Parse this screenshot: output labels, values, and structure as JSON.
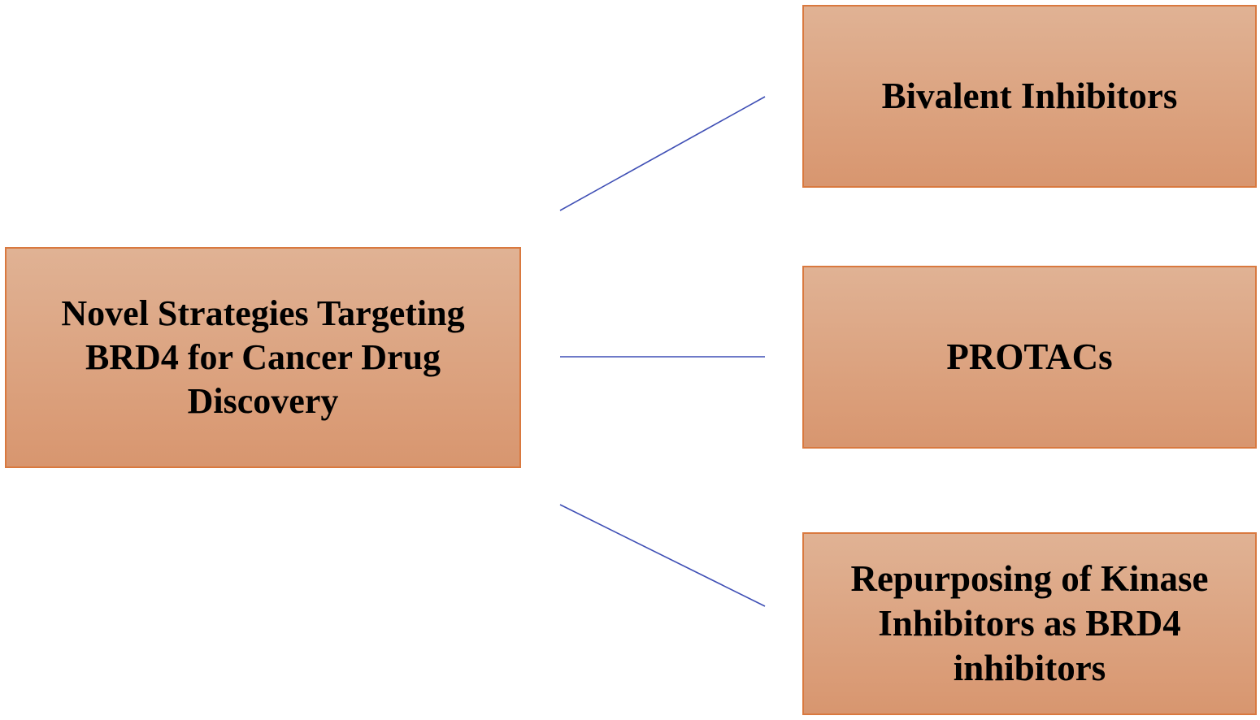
{
  "root": {
    "label": "Novel Strategies Targeting BRD4 for Cancer Drug Discovery"
  },
  "branches": [
    {
      "label": "Bivalent Inhibitors"
    },
    {
      "label": "PROTACs"
    },
    {
      "label": "Repurposing of Kinase Inhibitors as BRD4 inhibitors"
    }
  ],
  "colors": {
    "box_fill_top": "#e0b294",
    "box_fill_bottom": "#d8966f",
    "box_border": "#d9793f",
    "connector": "#3f4fb5"
  }
}
